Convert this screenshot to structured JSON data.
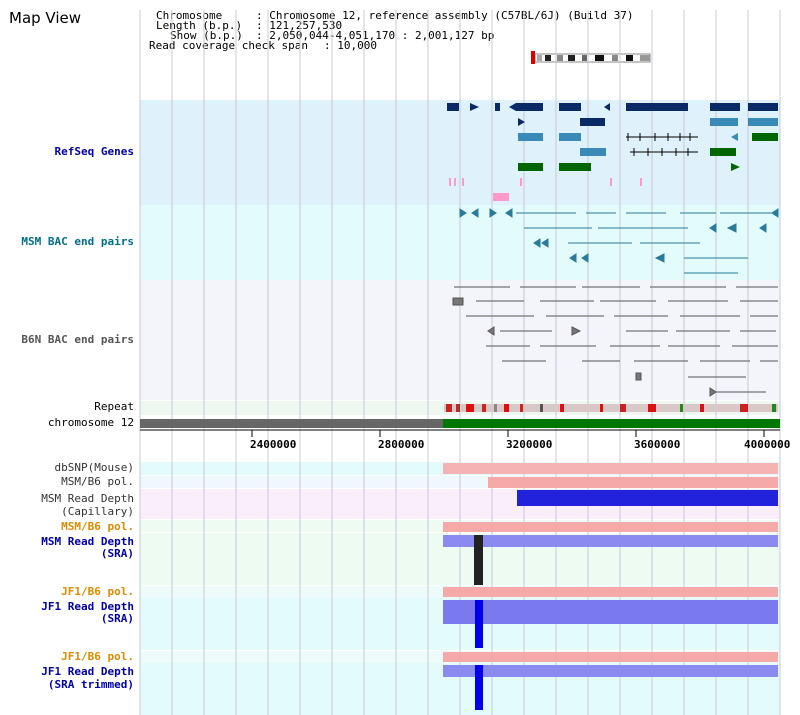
{
  "page_title": "Map View",
  "info": {
    "chromosome_key": "Chromosome",
    "chromosome_value": ": Chromosome 12, reference assembly (C57BL/6J) (Build 37)",
    "length_key": "Length (b.p.)",
    "length_value": ": 121,257,530",
    "show_key": "Show (b.p.)",
    "show_value": ": 2,050,044-4,051,170 : 2,001,127 bp",
    "span_key": "Read coverage check span",
    "span_value": ": 10,000"
  },
  "tracks": {
    "refseq": "RefSeq Genes",
    "msm_bac": "MSM BAC end pairs",
    "b6n_bac": "B6N BAC end pairs",
    "repeat": "Repeat",
    "chromosome": "chromosome 12",
    "dbsnp": "dbSNP(Mouse)",
    "msm_b6_pol_1": "MSM/B6 pol.",
    "msm_read_depth_cap_1": "MSM Read Depth",
    "msm_read_depth_cap_2": "(Capillary)",
    "msm_b6_pol_2": "MSM/B6 pol.",
    "msm_read_depth_sra_1": "MSM Read Depth",
    "msm_read_depth_sra_2": "(SRA)",
    "jf1_b6_pol_1": "JF1/B6 pol.",
    "jf1_read_depth_sra_1": "JF1 Read Depth",
    "jf1_read_depth_sra_2": "(SRA)",
    "jf1_b6_pol_2": "JF1/B6 pol.",
    "jf1_read_depth_trim_1": "JF1 Read Depth",
    "jf1_read_depth_trim_2": "(SRA trimmed)"
  },
  "axis_ticks": [
    "2400000",
    "2800000",
    "3200000",
    "3600000",
    "4000000"
  ],
  "colors": {
    "refseq_bg": "#dff1fb",
    "msm_bac_bg": "#e3fbfb",
    "b6n_bac_bg": "#f4f4fb",
    "label_blue": "#0000aa",
    "label_teal": "#006e8c",
    "label_orange": "#e08a00",
    "label_gray": "#555555",
    "gene_dark": "#0a2a66",
    "gene_mid": "#3a8ab8",
    "gene_green": "#006600",
    "chrom_gray": "#666666",
    "chrom_green": "#007700"
  }
}
